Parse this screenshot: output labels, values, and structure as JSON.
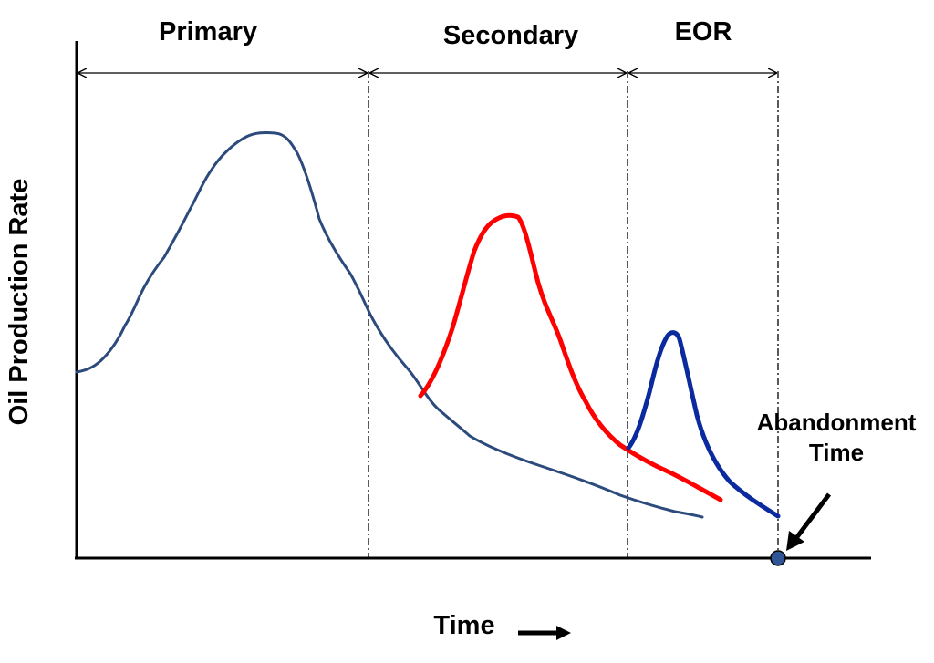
{
  "chart_data": {
    "type": "line",
    "xlabel": "Time",
    "ylabel": "Oil Production Rate",
    "phases": [
      {
        "label": "Primary"
      },
      {
        "label": "Secondary"
      },
      {
        "label": "EOR"
      }
    ],
    "annotation": {
      "line1": "Abandonment",
      "line2": "Time"
    },
    "colors": {
      "primary_curve": "#2c4a7c",
      "secondary_curve": "#ff0000",
      "eor_curve": "#0a2a9e",
      "abandonment_marker": "#2f5597"
    }
  }
}
